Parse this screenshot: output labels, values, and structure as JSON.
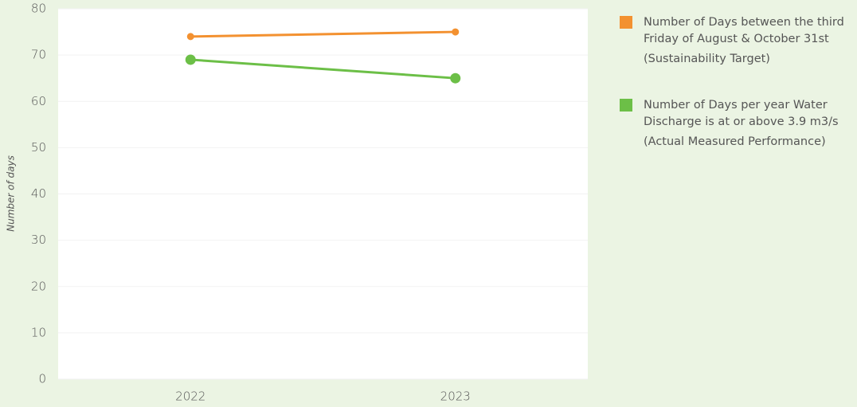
{
  "chart_data": {
    "type": "line",
    "y_label": "Number of days",
    "categories": [
      "2022",
      "2023"
    ],
    "series": [
      {
        "name": "Number of Days between the third Friday of August & October 31st",
        "description": "(Sustainability Target)",
        "color": "#f39130",
        "values": [
          74,
          75
        ]
      },
      {
        "name": "Number of Days per year Water Discharge is at or above 3.9 m3/s",
        "description": "(Actual Measured Performance)",
        "color": "#6cbf47",
        "values": [
          69,
          65
        ]
      }
    ],
    "ylim": [
      0,
      80
    ],
    "yticks": [
      0,
      10,
      20,
      30,
      40,
      50,
      60,
      70,
      80
    ],
    "grid": true,
    "legend": "right"
  }
}
